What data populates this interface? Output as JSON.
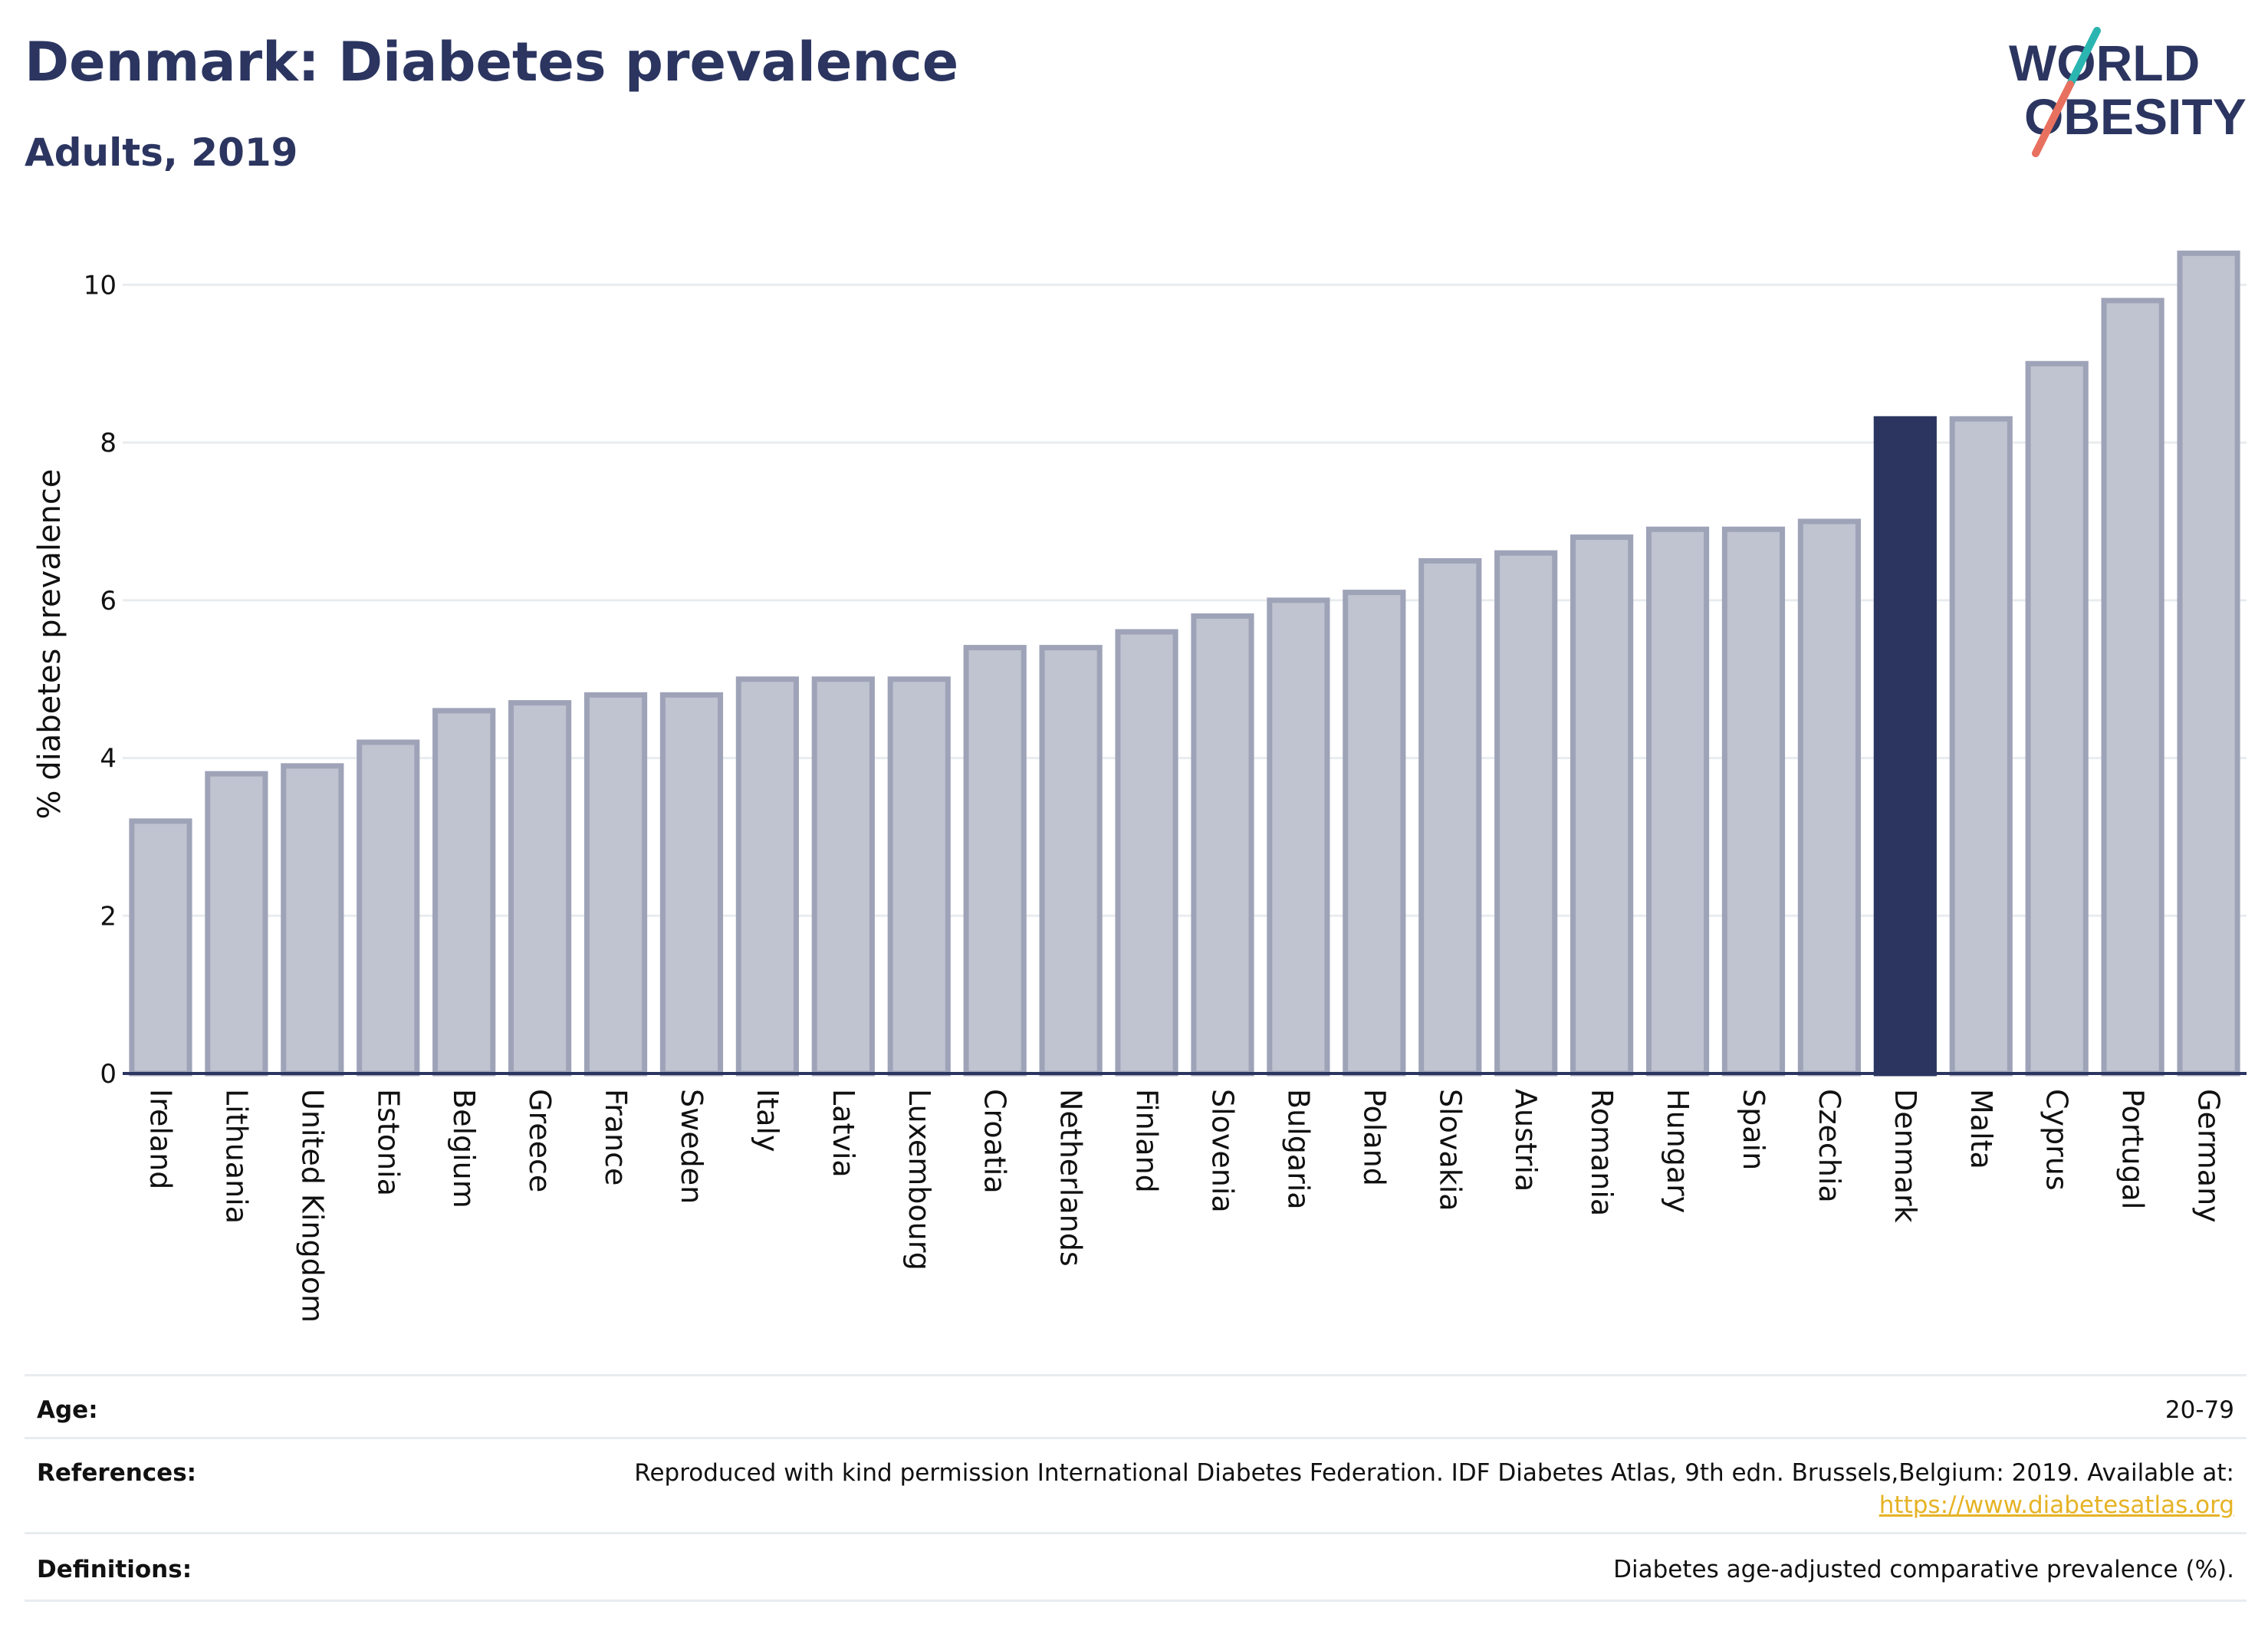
{
  "header": {
    "title": "Denmark: Diabetes prevalence",
    "subtitle": "Adults, 2019",
    "logo_line1": "WORLD",
    "logo_line2": "OBESITY"
  },
  "chart_data": {
    "type": "bar",
    "ylabel": "% diabetes prevalence",
    "xlabel": "",
    "ylim": [
      0,
      10.5
    ],
    "yticks": [
      0,
      2,
      4,
      6,
      8,
      10
    ],
    "grid": true,
    "highlight": "Denmark",
    "categories": [
      "Ireland",
      "Lithuania",
      "United Kingdom",
      "Estonia",
      "Belgium",
      "Greece",
      "France",
      "Sweden",
      "Italy",
      "Latvia",
      "Luxembourg",
      "Croatia",
      "Netherlands",
      "Finland",
      "Slovenia",
      "Bulgaria",
      "Poland",
      "Slovakia",
      "Austria",
      "Romania",
      "Hungary",
      "Spain",
      "Czechia",
      "Denmark",
      "Malta",
      "Cyprus",
      "Portugal",
      "Germany"
    ],
    "values": [
      3.2,
      3.8,
      3.9,
      4.2,
      4.6,
      4.7,
      4.8,
      4.8,
      5.0,
      5.0,
      5.0,
      5.4,
      5.4,
      5.6,
      5.8,
      6.0,
      6.1,
      6.5,
      6.6,
      6.8,
      6.9,
      6.9,
      7.0,
      8.3,
      8.3,
      9.0,
      9.8,
      10.4
    ]
  },
  "colors": {
    "bar": "#c0c3d0",
    "bar_border": "#9ea3b8",
    "highlight": "#2b3560",
    "axis": "#2b3560",
    "grid": "#e9ecef",
    "title": "#2b3560",
    "link": "#e6b325",
    "logo_teal": "#2bb5b0",
    "logo_coral": "#e8705f"
  },
  "footer": {
    "age_label": "Age:",
    "age_value": "20-79",
    "references_label": "References:",
    "references_value": "Reproduced with kind permission International Diabetes Federation. IDF Diabetes Atlas, 9th edn. Brussels,Belgium: 2019. Available at:",
    "references_link": "https://www.diabetesatlas.org",
    "definitions_label": "Definitions:",
    "definitions_value": "Diabetes age-adjusted comparative prevalence (%)."
  }
}
